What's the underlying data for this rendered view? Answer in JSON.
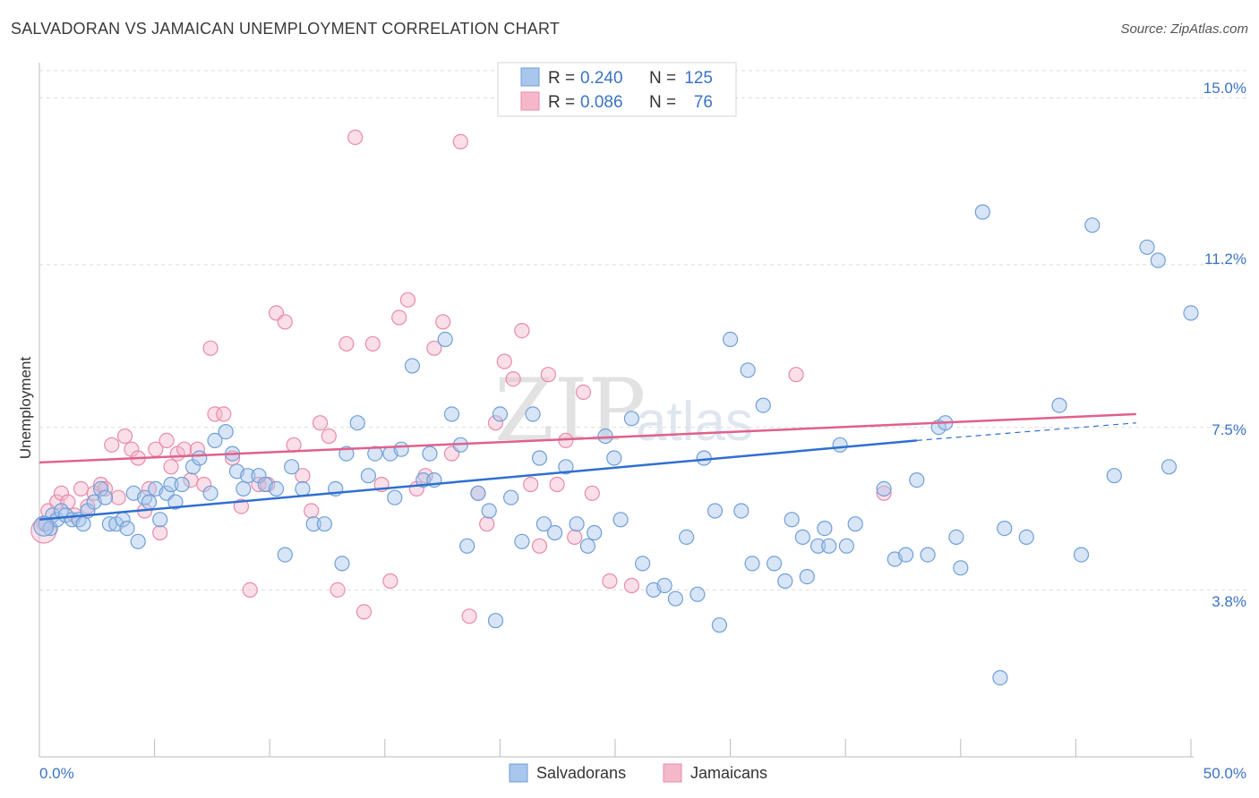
{
  "header": {
    "title": "SALVADORAN VS JAMAICAN UNEMPLOYMENT CORRELATION CHART",
    "source": "Source: ZipAtlas.com"
  },
  "watermark": {
    "zip": "ZIP",
    "atlas": "atlas"
  },
  "legend": {
    "rows": [
      {
        "r_label": "R =",
        "r_value": "0.240",
        "n_label": "N =",
        "n_value": "125"
      },
      {
        "r_label": "R =",
        "r_value": "0.086",
        "n_label": "N =",
        "n_value": "76"
      }
    ]
  },
  "bottom_legend": {
    "series1": "Salvadorans",
    "series2": "Jamaicans"
  },
  "axes": {
    "ylabel": "Unemployment",
    "x_tick_left": "0.0%",
    "x_tick_right": "50.0%",
    "y_ticks": [
      "15.0%",
      "11.2%",
      "7.5%",
      "3.8%"
    ]
  },
  "colors": {
    "blue_fill": "#a9c6ec",
    "blue_stroke": "#6f9fd8",
    "blue_line": "#2f6fcf",
    "pink_fill": "#f5b8cb",
    "pink_stroke": "#e98aa8",
    "pink_line": "#e0608c",
    "tick_text": "#3b73c4"
  },
  "chart_data": {
    "type": "scatter",
    "title": "SALVADORAN VS JAMAICAN UNEMPLOYMENT CORRELATION CHART",
    "xlabel": "",
    "ylabel": "Unemployment",
    "xlim": [
      0,
      50
    ],
    "ylim": [
      0,
      15.8
    ],
    "y_ticks": [
      3.8,
      7.5,
      11.2,
      15.0
    ],
    "grid": true,
    "legend": "top-center",
    "series": [
      {
        "name": "Salvadorans",
        "r": 0.24,
        "n": 125,
        "trend": {
          "x0": 0,
          "y0": 5.4,
          "x1": 40,
          "y1": 7.2,
          "dash_to": 50,
          "dash_y": 7.6
        },
        "points": [
          [
            0.3,
            5.3
          ],
          [
            0.5,
            5.2
          ],
          [
            0.6,
            5.5
          ],
          [
            0.8,
            5.4
          ],
          [
            1.0,
            5.6
          ],
          [
            1.2,
            5.5
          ],
          [
            1.5,
            5.4
          ],
          [
            1.8,
            5.4
          ],
          [
            2.0,
            5.3
          ],
          [
            2.2,
            5.6
          ],
          [
            2.5,
            5.8
          ],
          [
            2.8,
            6.1
          ],
          [
            3.0,
            5.9
          ],
          [
            3.2,
            5.3
          ],
          [
            3.5,
            5.3
          ],
          [
            3.8,
            5.4
          ],
          [
            4.0,
            5.2
          ],
          [
            4.3,
            6.0
          ],
          [
            4.5,
            4.9
          ],
          [
            4.8,
            5.9
          ],
          [
            5.0,
            5.8
          ],
          [
            5.3,
            6.1
          ],
          [
            5.5,
            5.4
          ],
          [
            5.8,
            6.0
          ],
          [
            6.0,
            6.2
          ],
          [
            6.2,
            5.8
          ],
          [
            6.5,
            6.2
          ],
          [
            7.0,
            6.6
          ],
          [
            7.3,
            6.8
          ],
          [
            7.8,
            6.0
          ],
          [
            8.0,
            7.2
          ],
          [
            8.5,
            7.4
          ],
          [
            8.8,
            6.9
          ],
          [
            9.0,
            6.5
          ],
          [
            9.3,
            6.1
          ],
          [
            9.5,
            6.4
          ],
          [
            10.0,
            6.4
          ],
          [
            10.3,
            6.2
          ],
          [
            10.8,
            6.1
          ],
          [
            11.2,
            4.6
          ],
          [
            11.5,
            6.6
          ],
          [
            12.0,
            6.1
          ],
          [
            12.5,
            5.3
          ],
          [
            13.0,
            5.3
          ],
          [
            13.5,
            6.1
          ],
          [
            13.8,
            4.4
          ],
          [
            14.0,
            6.9
          ],
          [
            14.5,
            7.6
          ],
          [
            15.0,
            6.4
          ],
          [
            15.3,
            6.9
          ],
          [
            16.0,
            6.9
          ],
          [
            16.2,
            5.9
          ],
          [
            16.5,
            7.0
          ],
          [
            17.0,
            8.9
          ],
          [
            17.5,
            6.3
          ],
          [
            17.8,
            6.9
          ],
          [
            18.0,
            6.3
          ],
          [
            18.5,
            9.5
          ],
          [
            18.8,
            7.8
          ],
          [
            19.2,
            7.1
          ],
          [
            19.5,
            4.8
          ],
          [
            20.0,
            6.0
          ],
          [
            20.5,
            5.6
          ],
          [
            20.8,
            3.1
          ],
          [
            21.0,
            7.8
          ],
          [
            21.5,
            5.9
          ],
          [
            22.0,
            4.9
          ],
          [
            22.5,
            7.8
          ],
          [
            22.8,
            6.8
          ],
          [
            23.0,
            5.3
          ],
          [
            23.5,
            5.1
          ],
          [
            24.0,
            6.6
          ],
          [
            24.5,
            5.3
          ],
          [
            25.0,
            4.8
          ],
          [
            25.3,
            5.1
          ],
          [
            25.8,
            7.3
          ],
          [
            26.2,
            6.8
          ],
          [
            26.5,
            5.4
          ],
          [
            27.0,
            7.7
          ],
          [
            27.5,
            4.4
          ],
          [
            28.0,
            3.8
          ],
          [
            28.5,
            3.9
          ],
          [
            29.0,
            3.6
          ],
          [
            29.5,
            5.0
          ],
          [
            30.0,
            3.7
          ],
          [
            30.3,
            6.8
          ],
          [
            30.8,
            5.6
          ],
          [
            31.0,
            3.0
          ],
          [
            31.5,
            9.5
          ],
          [
            32.0,
            5.6
          ],
          [
            32.3,
            8.8
          ],
          [
            32.5,
            4.4
          ],
          [
            33.0,
            8.0
          ],
          [
            33.5,
            4.4
          ],
          [
            34.0,
            4.0
          ],
          [
            34.3,
            5.4
          ],
          [
            34.8,
            5.0
          ],
          [
            35.0,
            4.1
          ],
          [
            35.5,
            4.8
          ],
          [
            35.8,
            5.2
          ],
          [
            36.0,
            4.8
          ],
          [
            36.5,
            7.1
          ],
          [
            36.8,
            4.8
          ],
          [
            37.2,
            5.3
          ],
          [
            38.5,
            6.1
          ],
          [
            39.0,
            4.5
          ],
          [
            39.5,
            4.6
          ],
          [
            40.0,
            6.3
          ],
          [
            40.5,
            4.6
          ],
          [
            41.0,
            7.5
          ],
          [
            41.3,
            7.6
          ],
          [
            41.8,
            5.0
          ],
          [
            42.0,
            4.3
          ],
          [
            43.0,
            12.4
          ],
          [
            43.8,
            1.8
          ],
          [
            44.0,
            5.2
          ],
          [
            45.0,
            5.0
          ],
          [
            46.5,
            8.0
          ],
          [
            47.5,
            4.6
          ],
          [
            48.0,
            12.1
          ],
          [
            49.0,
            6.4
          ],
          [
            50.5,
            11.6
          ],
          [
            51.0,
            11.3
          ],
          [
            51.5,
            6.6
          ],
          [
            52.5,
            10.1
          ]
        ]
      },
      {
        "name": "Jamaicans",
        "r": 0.086,
        "n": 76,
        "trend": {
          "x0": 0,
          "y0": 6.7,
          "x1": 50,
          "y1": 7.8
        },
        "points": [
          [
            0.2,
            5.3
          ],
          [
            0.4,
            5.6
          ],
          [
            0.8,
            5.8
          ],
          [
            1.0,
            6.0
          ],
          [
            1.3,
            5.8
          ],
          [
            1.6,
            5.5
          ],
          [
            1.9,
            6.1
          ],
          [
            2.2,
            5.7
          ],
          [
            2.5,
            6.0
          ],
          [
            2.8,
            6.2
          ],
          [
            3.0,
            6.1
          ],
          [
            3.3,
            7.1
          ],
          [
            3.6,
            5.9
          ],
          [
            3.9,
            7.3
          ],
          [
            4.2,
            7.0
          ],
          [
            4.5,
            6.8
          ],
          [
            4.8,
            5.6
          ],
          [
            5.0,
            6.1
          ],
          [
            5.3,
            7.0
          ],
          [
            5.5,
            5.1
          ],
          [
            5.8,
            7.2
          ],
          [
            6.0,
            6.6
          ],
          [
            6.3,
            6.9
          ],
          [
            6.6,
            7.0
          ],
          [
            6.9,
            6.3
          ],
          [
            7.2,
            7.0
          ],
          [
            7.5,
            6.2
          ],
          [
            7.8,
            9.3
          ],
          [
            8.0,
            7.8
          ],
          [
            8.4,
            7.8
          ],
          [
            8.8,
            6.8
          ],
          [
            9.2,
            5.7
          ],
          [
            9.6,
            3.8
          ],
          [
            10.0,
            6.2
          ],
          [
            10.4,
            6.2
          ],
          [
            10.8,
            10.1
          ],
          [
            11.2,
            9.9
          ],
          [
            11.6,
            7.1
          ],
          [
            12.0,
            6.4
          ],
          [
            12.4,
            5.6
          ],
          [
            12.8,
            7.6
          ],
          [
            13.2,
            7.3
          ],
          [
            13.6,
            3.8
          ],
          [
            14.0,
            9.4
          ],
          [
            14.4,
            14.1
          ],
          [
            14.8,
            3.3
          ],
          [
            15.2,
            9.4
          ],
          [
            15.6,
            6.2
          ],
          [
            16.0,
            4.0
          ],
          [
            16.4,
            10.0
          ],
          [
            16.8,
            10.4
          ],
          [
            17.2,
            6.1
          ],
          [
            17.6,
            6.4
          ],
          [
            18.0,
            9.3
          ],
          [
            18.4,
            9.9
          ],
          [
            18.8,
            6.9
          ],
          [
            19.2,
            14.0
          ],
          [
            19.6,
            3.2
          ],
          [
            20.0,
            6.0
          ],
          [
            20.4,
            5.3
          ],
          [
            20.8,
            7.6
          ],
          [
            21.2,
            9.0
          ],
          [
            21.6,
            8.6
          ],
          [
            22.0,
            9.7
          ],
          [
            22.4,
            6.2
          ],
          [
            22.8,
            4.8
          ],
          [
            23.2,
            8.7
          ],
          [
            23.6,
            6.2
          ],
          [
            24.0,
            7.2
          ],
          [
            24.4,
            5.0
          ],
          [
            24.8,
            8.3
          ],
          [
            25.2,
            6.0
          ],
          [
            26.0,
            4.0
          ],
          [
            27.0,
            3.9
          ],
          [
            34.5,
            8.7
          ],
          [
            38.5,
            6.0
          ]
        ]
      }
    ]
  }
}
